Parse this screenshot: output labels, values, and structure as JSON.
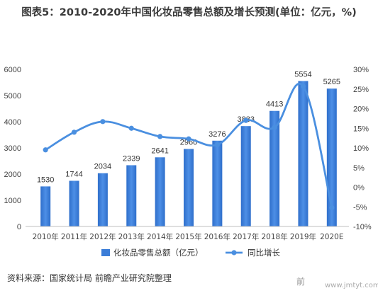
{
  "title": "图表5：2010-2020年中国化妆品零售总额及增长预测(单位：亿元，%)",
  "source": "资料来源：国家统计局 前瞻产业研究院整理",
  "watermark_left": "前",
  "watermark_right": "www.jmtyt.com",
  "chart_data": {
    "type": "bar",
    "categories": [
      "2010年",
      "2011年",
      "2012年",
      "2013年",
      "2014年",
      "2015年",
      "2016年",
      "2017年",
      "2018年",
      "2019年",
      "2020E"
    ],
    "series": [
      {
        "name": "化妆品零售总额（亿元）",
        "type": "bar",
        "axis": "left",
        "color": "#3b7dd8",
        "values": [
          1530,
          1744,
          2034,
          2339,
          2641,
          2960,
          3276,
          3833,
          4413,
          5554,
          5265
        ]
      },
      {
        "name": "同比增长",
        "type": "line",
        "axis": "right",
        "color": "#4a8fe0",
        "values": [
          9.5,
          14.0,
          16.7,
          15.0,
          12.9,
          12.3,
          10.8,
          17.0,
          15.2,
          25.7,
          -5.2
        ]
      }
    ],
    "data_labels": [
      "1530",
      "1744",
      "2034",
      "2339",
      "2641",
      "2960",
      "3276",
      "3833",
      "4413",
      "5554",
      "5265"
    ],
    "ylim": [
      0,
      6000
    ],
    "y_ticks": [
      "0",
      "1000",
      "2000",
      "3000",
      "4000",
      "5000",
      "6000"
    ],
    "y2lim": [
      -10,
      30
    ],
    "y2_ticks": [
      "-10%",
      "-5%",
      "0%",
      "5%",
      "10%",
      "15%",
      "20%",
      "25%",
      "30%"
    ],
    "grid": false,
    "legend": {
      "position": "bottom",
      "bar_label": "化妆品零售总额（亿元）",
      "line_label": "同比增长"
    }
  }
}
